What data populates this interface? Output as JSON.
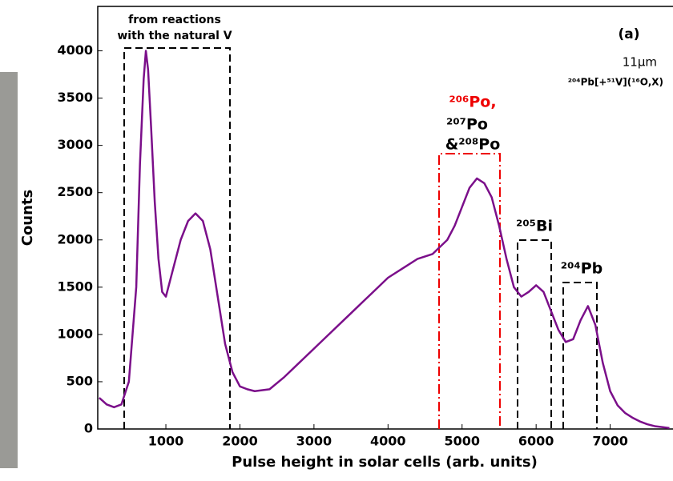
{
  "chart_data": {
    "type": "line",
    "xlabel": "Pulse height in solar cells (arb. units)",
    "ylabel": "Counts",
    "annotations": {
      "natural_v_line1": "from reactions",
      "natural_v_line2": "with the natural V",
      "panel": "(a)",
      "thickness": "11μm",
      "reaction": "²⁰⁴Pb[+⁵¹V](¹⁶O,X)",
      "po206": "²⁰⁶Po,",
      "po207": "²⁰⁷Po",
      "po208": "&²⁰⁸Po",
      "bi205": "²⁰⁵Bi",
      "pb204": "²⁰⁴Pb"
    },
    "x": [
      100,
      200,
      300,
      400,
      500,
      600,
      650,
      700,
      730,
      760,
      800,
      850,
      900,
      950,
      1000,
      1100,
      1200,
      1300,
      1400,
      1500,
      1600,
      1700,
      1800,
      1900,
      2000,
      2100,
      2200,
      2400,
      2600,
      2800,
      3000,
      3200,
      3400,
      3600,
      3800,
      4000,
      4200,
      4400,
      4600,
      4800,
      4900,
      5000,
      5100,
      5200,
      5300,
      5400,
      5500,
      5600,
      5700,
      5800,
      5900,
      6000,
      6100,
      6200,
      6300,
      6400,
      6500,
      6600,
      6700,
      6800,
      6900,
      7000,
      7100,
      7200,
      7300,
      7400,
      7500,
      7600,
      7700,
      7800
    ],
    "series": [
      {
        "color": "#7b0f8a",
        "values": [
          330,
          260,
          230,
          260,
          500,
          1500,
          2800,
          3700,
          4000,
          3800,
          3200,
          2400,
          1800,
          1450,
          1400,
          1700,
          2000,
          2200,
          2280,
          2200,
          1900,
          1400,
          900,
          600,
          450,
          420,
          400,
          420,
          550,
          700,
          850,
          1000,
          1150,
          1300,
          1450,
          1600,
          1700,
          1800,
          1850,
          2000,
          2150,
          2350,
          2550,
          2650,
          2600,
          2450,
          2150,
          1800,
          1500,
          1400,
          1450,
          1520,
          1450,
          1250,
          1050,
          920,
          950,
          1150,
          1300,
          1100,
          700,
          400,
          250,
          170,
          120,
          80,
          50,
          30,
          20,
          10
        ]
      }
    ],
    "xlim": [
      80,
      7870
    ],
    "ylim": [
      0,
      4470
    ],
    "xticks": [
      1000,
      2000,
      3000,
      4000,
      5000,
      6000,
      7000
    ],
    "yticks": [
      0,
      500,
      1000,
      1500,
      2000,
      2500,
      3000,
      3500,
      4000
    ]
  }
}
